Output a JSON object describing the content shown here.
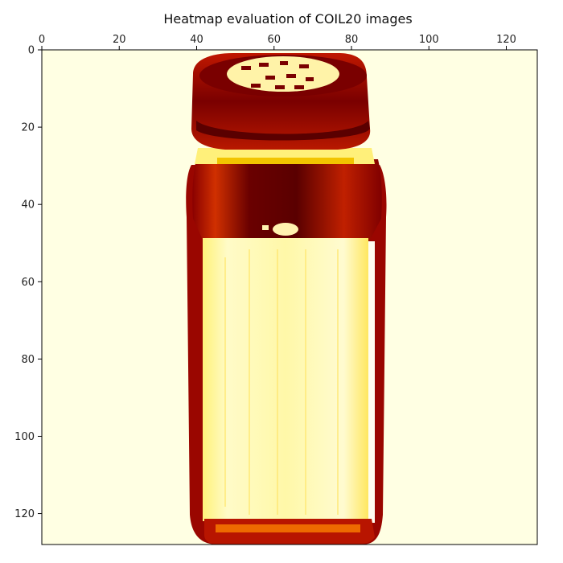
{
  "chart_data": {
    "type": "heatmap",
    "title": "Heatmap evaluation of COIL20 images",
    "xlabel": "",
    "ylabel": "",
    "xlim": [
      0,
      128
    ],
    "ylim": [
      128,
      0
    ],
    "x_ticks": [
      0,
      20,
      40,
      60,
      80,
      100,
      120
    ],
    "y_ticks": [
      0,
      20,
      40,
      60,
      80,
      100,
      120
    ],
    "x_tick_position": "top",
    "grid": false,
    "colormap": "hot",
    "background_color": "#ffffe3",
    "colors": {
      "dark_red": "#7a0000",
      "red": "#c01000",
      "orange": "#ee6a00",
      "yellow": "#ffee33",
      "pale_yellow": "#fff7a0",
      "white": "#ffffff"
    },
    "image_description_shapes": [
      {
        "part": "cap_top",
        "tone": "dark_red"
      },
      {
        "part": "cap_holes",
        "tone": "pale_yellow"
      },
      {
        "part": "cap_band",
        "tone": "red"
      },
      {
        "part": "neck_band",
        "tone": "yellow"
      },
      {
        "part": "shoulder",
        "tone": "dark_red"
      },
      {
        "part": "body_label",
        "tone": "pale_yellow"
      },
      {
        "part": "base",
        "tone": "red"
      }
    ]
  }
}
